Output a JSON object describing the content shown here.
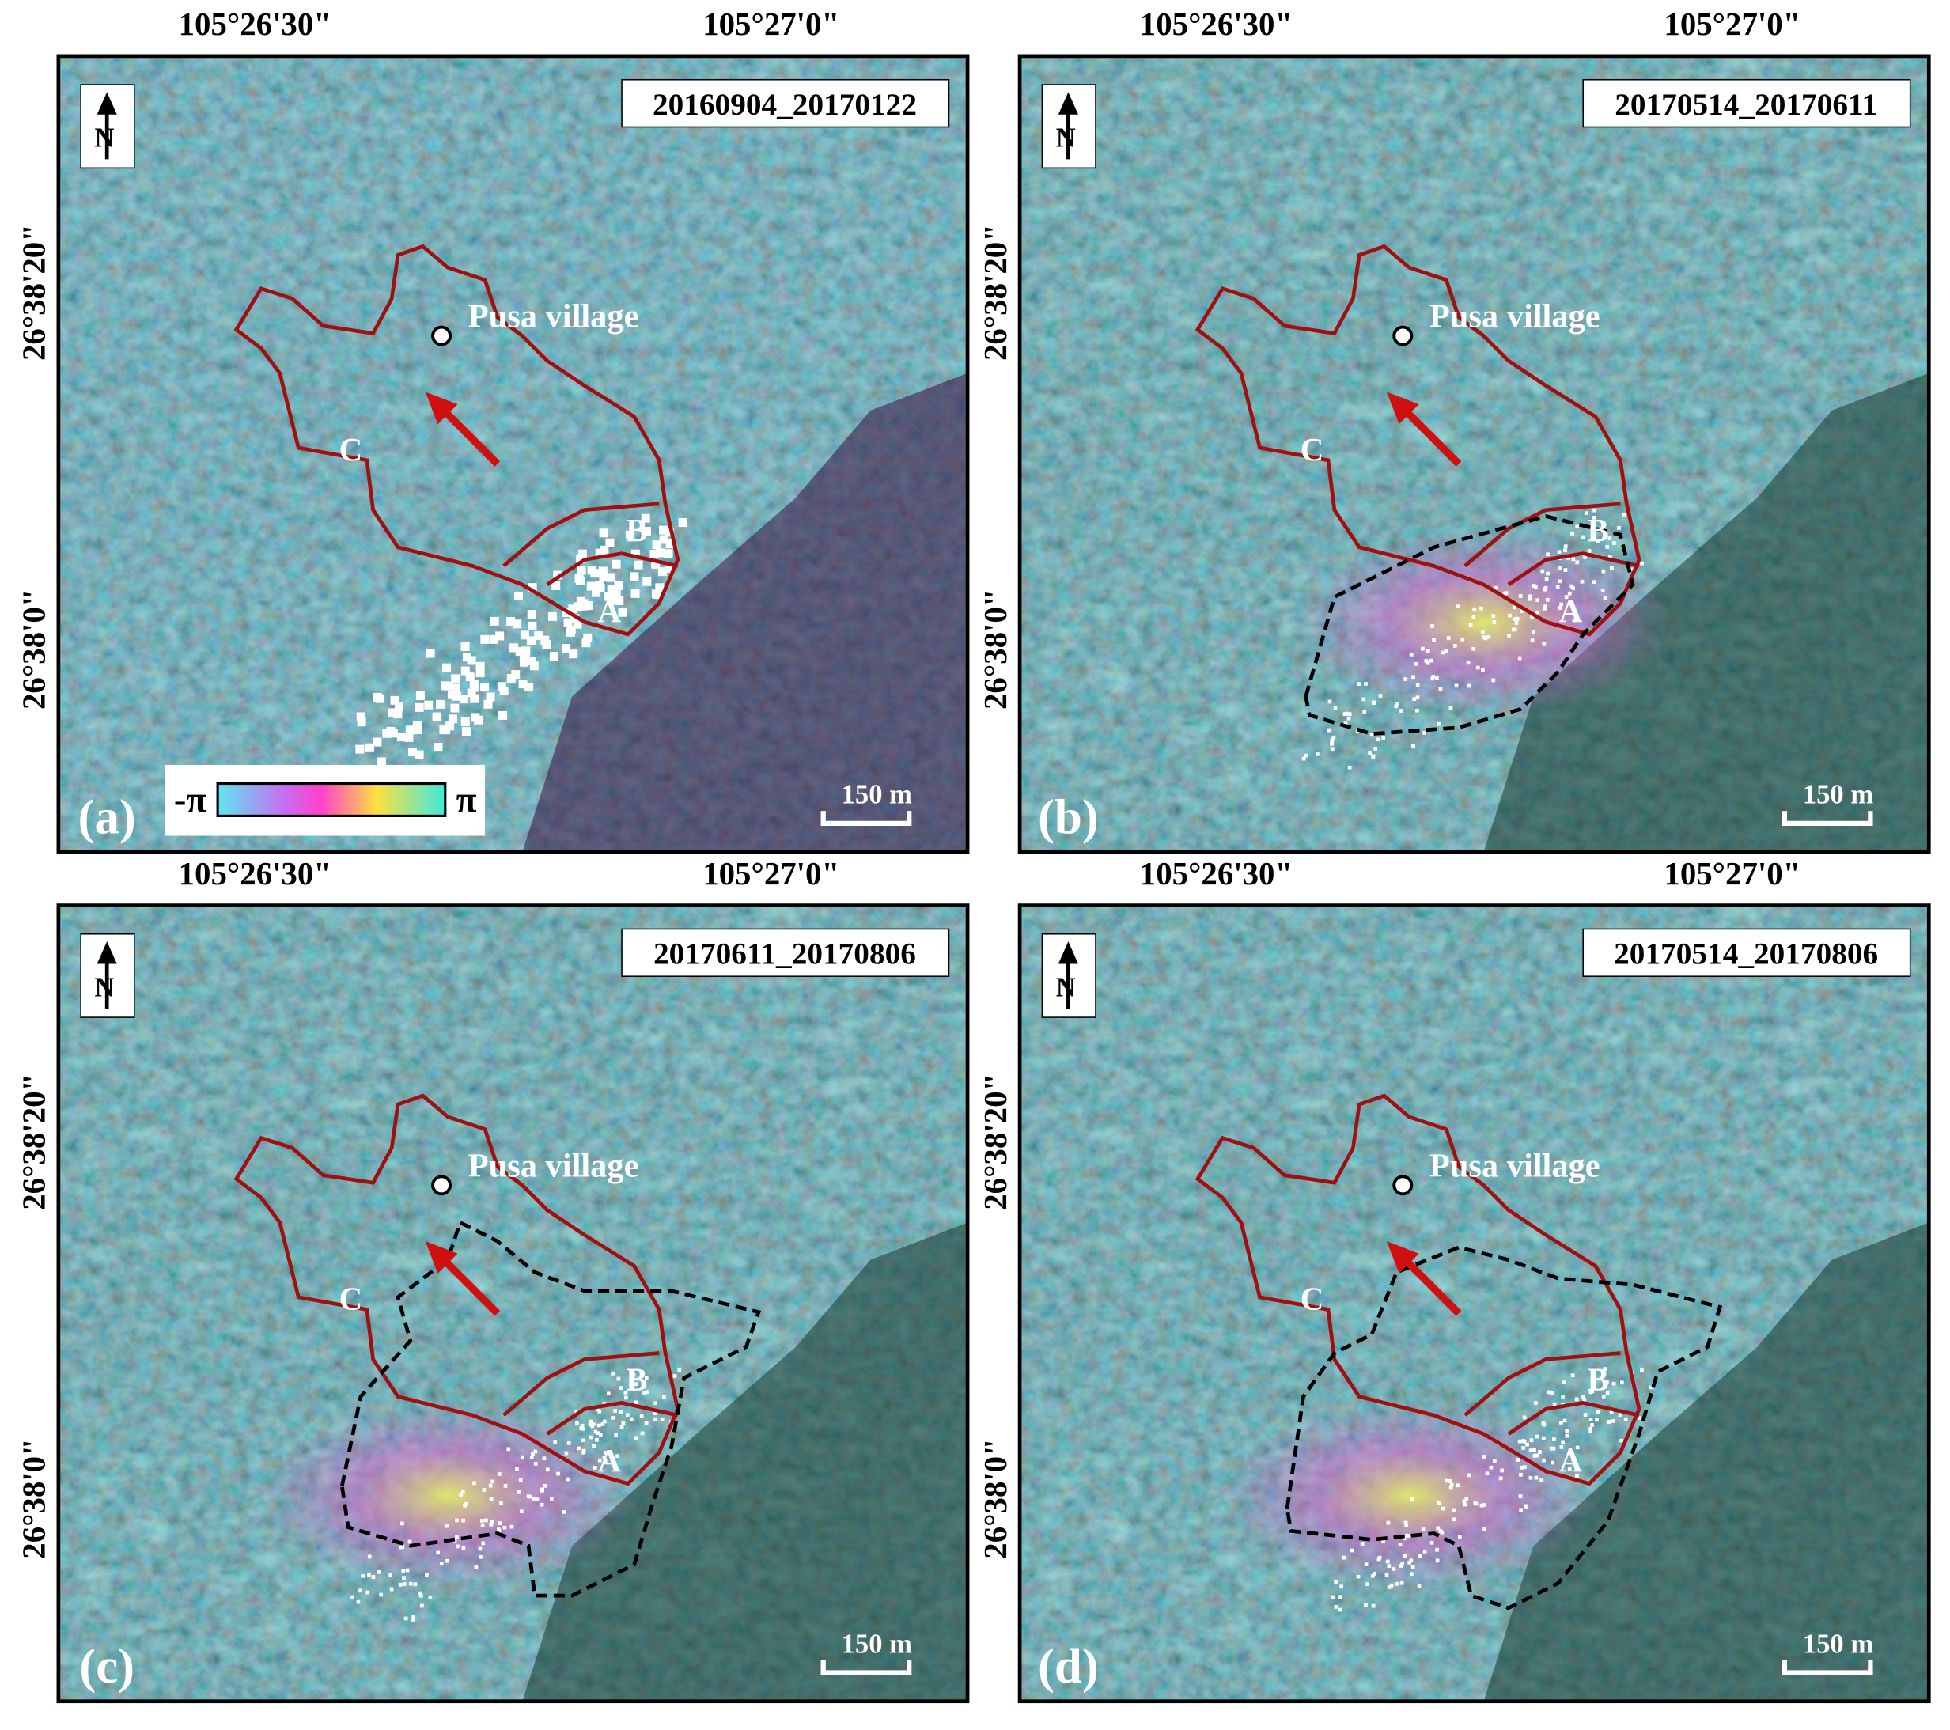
{
  "panels": [
    {
      "label": "(a)",
      "date": "20160904_20170122",
      "lon_labels": [
        "105°26'30\"",
        "105°27'0\""
      ],
      "lat_labels": [
        "26°38'20\"",
        "26°38'0\""
      ],
      "village": "Pusa village",
      "zones": [
        "A",
        "B",
        "C"
      ],
      "north": "N",
      "scale_bar": "150 m"
    },
    {
      "label": "(b)",
      "date": "20170514_20170611",
      "lon_labels": [
        "105°26'30\"",
        "105°27'0\""
      ],
      "lat_labels": [
        "26°38'20\"",
        "26°38'0\""
      ],
      "village": "Pusa village",
      "zones": [
        "A",
        "B",
        "C"
      ],
      "north": "N",
      "scale_bar": "150 m"
    },
    {
      "label": "(c)",
      "date": "20170611_20170806",
      "lon_labels": [
        "105°26'30\"",
        "105°27'0\""
      ],
      "lat_labels": [
        "26°38'20\"",
        "26°38'0\""
      ],
      "village": "Pusa village",
      "zones": [
        "A",
        "B",
        "C"
      ],
      "north": "N",
      "scale_bar": "150 m"
    },
    {
      "label": "(d)",
      "date": "20170514_20170806",
      "lon_labels": [
        "105°26'30\"",
        "105°27'0\""
      ],
      "lat_labels": [
        "26°38'20\"",
        "26°38'0\""
      ],
      "village": "Pusa village",
      "zones": [
        "A",
        "B",
        "C"
      ],
      "north": "N",
      "scale_bar": "150 m"
    }
  ],
  "colorbar": {
    "min": "-π",
    "max": "π"
  }
}
